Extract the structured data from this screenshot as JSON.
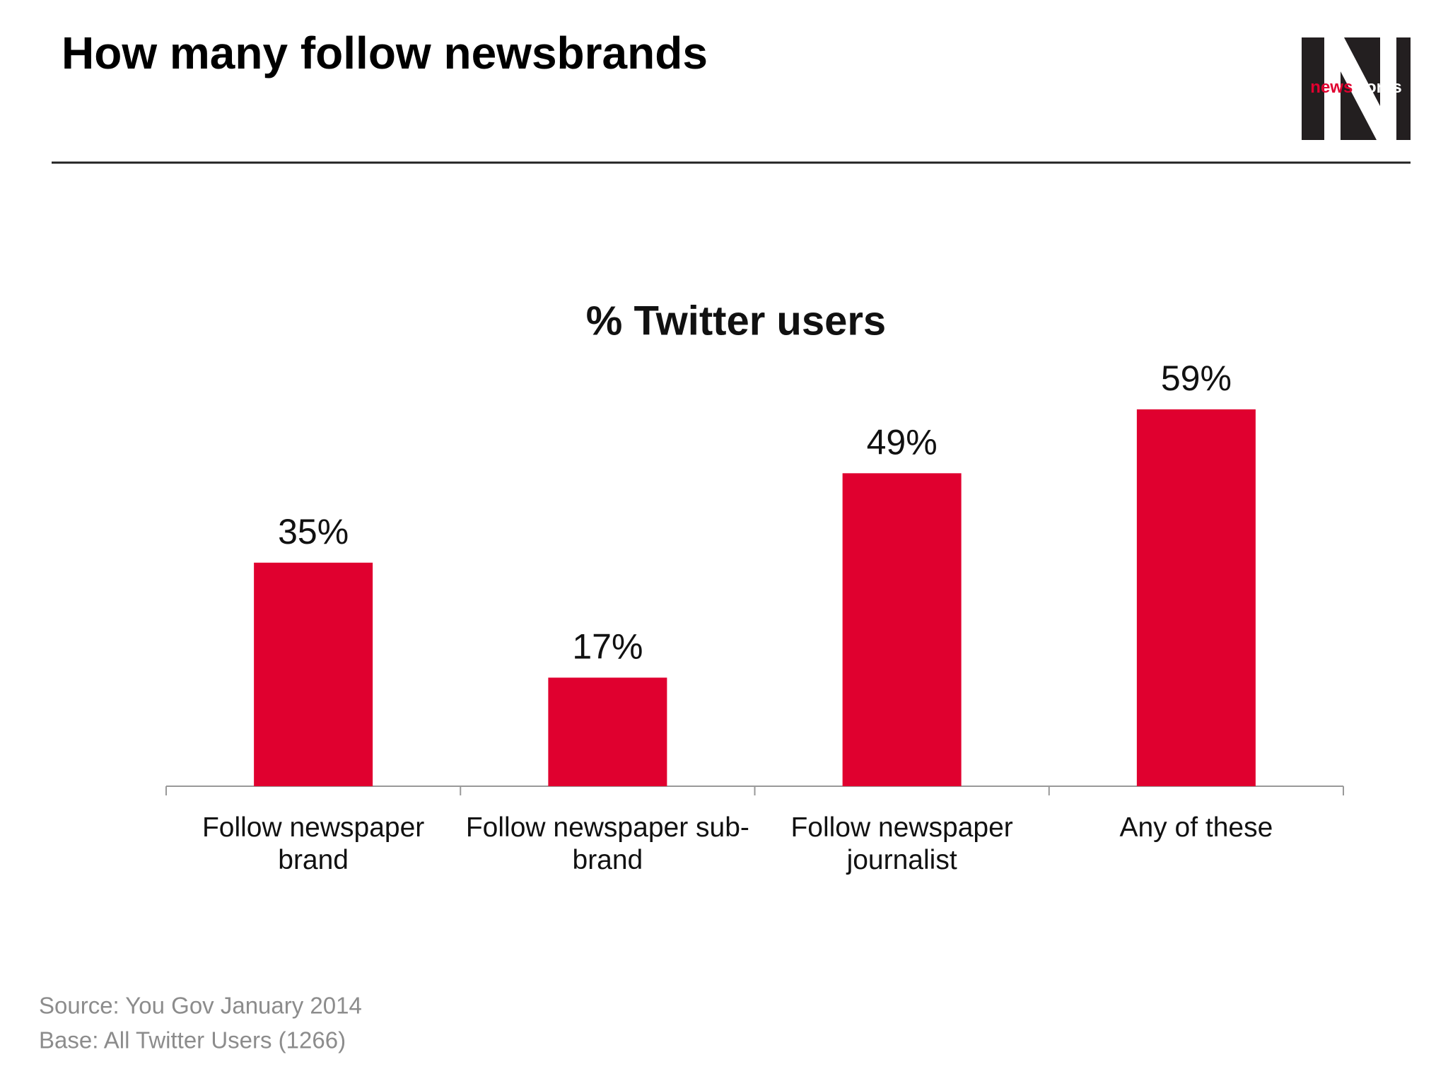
{
  "header": {
    "title": "How many follow newsbrands",
    "logo": [
      "news",
      "works"
    ]
  },
  "chart_data": {
    "type": "bar",
    "title": "% Twitter users",
    "categories": [
      "Follow newspaper brand",
      "Follow newspaper sub-brand",
      "Follow newspaper journalist",
      "Any of these"
    ],
    "values": [
      35,
      17,
      49,
      59
    ],
    "value_labels": [
      "35%",
      "17%",
      "49%",
      "59%"
    ],
    "color": "#e0002f"
  },
  "footer": {
    "source": "Source: You Gov January 2014",
    "base": "Base: All Twitter Users (1266)"
  }
}
